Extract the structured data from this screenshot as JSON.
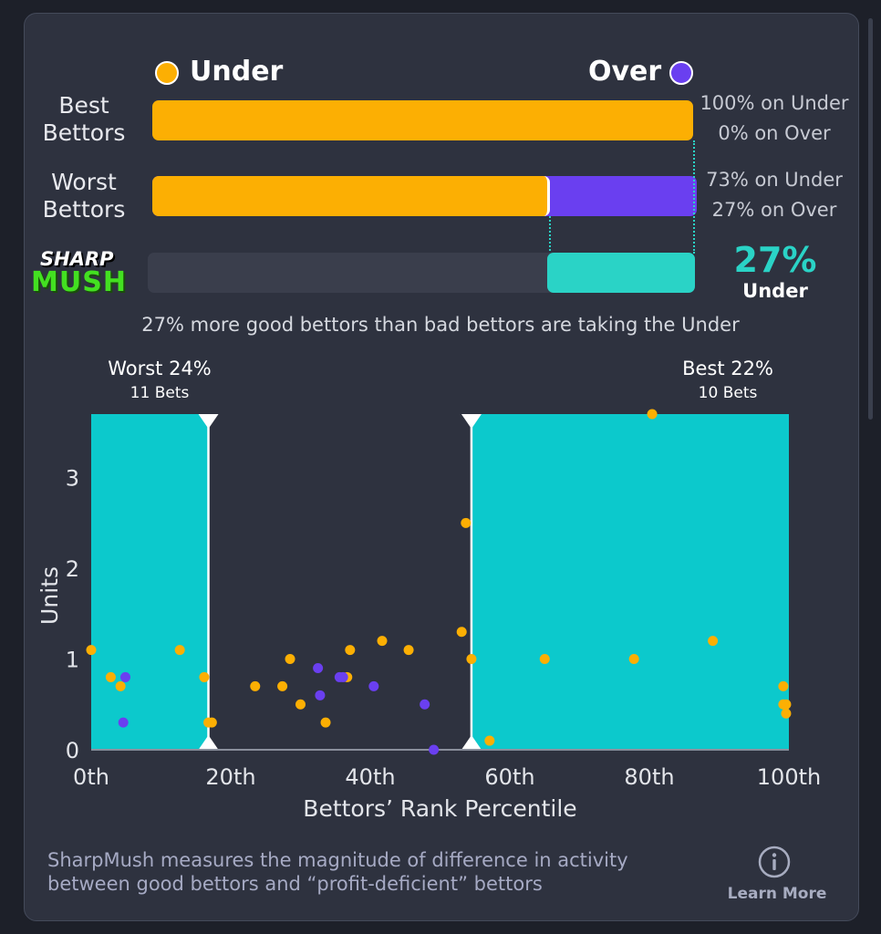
{
  "legend": {
    "under_label": "Under",
    "over_label": "Over",
    "under_color": "#fcaf03",
    "over_color": "#6a3ff0"
  },
  "rows": {
    "best_label_line1": "Best",
    "best_label_line2": "Bettors",
    "best_under_text": "100% on Under",
    "best_over_text": "0% on Over",
    "best_under_fraction": 1.0,
    "worst_label_line1": "Worst",
    "worst_label_line2": "Bettors",
    "worst_under_text": "73% on Under",
    "worst_over_text": "27% on Over",
    "worst_under_fraction": 0.73
  },
  "sharpmush": {
    "logo_line1": "SHARP",
    "logo_line2": "MUSH",
    "value_text": "27%",
    "side_text": "Under",
    "fraction": 0.27,
    "color": "#2ad3c6",
    "summary": "27% more good bettors than bad bettors are taking the Under"
  },
  "chart_data": {
    "type": "scatter",
    "xlabel": "Bettors’ Rank Percentile",
    "ylabel": "Units",
    "xlim": [
      0,
      100
    ],
    "ylim": [
      0,
      3.7
    ],
    "x_ticks": [
      0,
      20,
      40,
      60,
      80,
      100
    ],
    "x_tick_labels": [
      "0th",
      "20th",
      "40th",
      "60th",
      "80th",
      "100th"
    ],
    "y_ticks": [
      0,
      1,
      2,
      3
    ],
    "y_tick_labels": [
      "0",
      "1",
      "2",
      "3"
    ],
    "zone_color": "#0cc9cc",
    "zones": [
      {
        "name": "worst",
        "from": 0,
        "to": 16.8,
        "label": "Worst 24%",
        "sublabel": "11 Bets"
      },
      {
        "name": "best",
        "from": 54.5,
        "to": 100,
        "label": "Best 22%",
        "sublabel": "10 Bets"
      }
    ],
    "series": [
      {
        "name": "Under",
        "color": "#fcaf03",
        "points": [
          [
            0,
            1.1
          ],
          [
            2.8,
            0.8
          ],
          [
            4.2,
            0.7
          ],
          [
            12.7,
            1.1
          ],
          [
            16.2,
            0.8
          ],
          [
            16.8,
            0.3
          ],
          [
            17.3,
            0.3
          ],
          [
            23.5,
            0.7
          ],
          [
            27.4,
            0.7
          ],
          [
            28.5,
            1.0
          ],
          [
            30.0,
            0.5
          ],
          [
            33.6,
            0.3
          ],
          [
            36.7,
            0.8
          ],
          [
            37.1,
            1.1
          ],
          [
            41.7,
            1.2
          ],
          [
            45.5,
            1.1
          ],
          [
            53.1,
            1.3
          ],
          [
            53.7,
            2.5
          ],
          [
            54.5,
            1.0
          ],
          [
            57.1,
            0.1
          ],
          [
            65.0,
            1.0
          ],
          [
            77.8,
            1.0
          ],
          [
            80.4,
            3.7
          ],
          [
            89.1,
            1.2
          ],
          [
            99.2,
            0.7
          ],
          [
            99.2,
            0.5
          ],
          [
            99.6,
            0.5
          ],
          [
            99.6,
            0.4
          ]
        ]
      },
      {
        "name": "Over",
        "color": "#6a3ff0",
        "points": [
          [
            4.6,
            0.3
          ],
          [
            4.9,
            0.8
          ],
          [
            32.5,
            0.9
          ],
          [
            32.8,
            0.6
          ],
          [
            35.6,
            0.8
          ],
          [
            36.1,
            0.8
          ],
          [
            40.5,
            0.7
          ],
          [
            47.8,
            0.5
          ],
          [
            49.1,
            0.0
          ]
        ]
      }
    ]
  },
  "footer": {
    "line1": "SharpMush measures the magnitude of difference in activity",
    "line2": "between good bettors and “profit-deficient” bettors",
    "learn_more": "Learn More"
  }
}
